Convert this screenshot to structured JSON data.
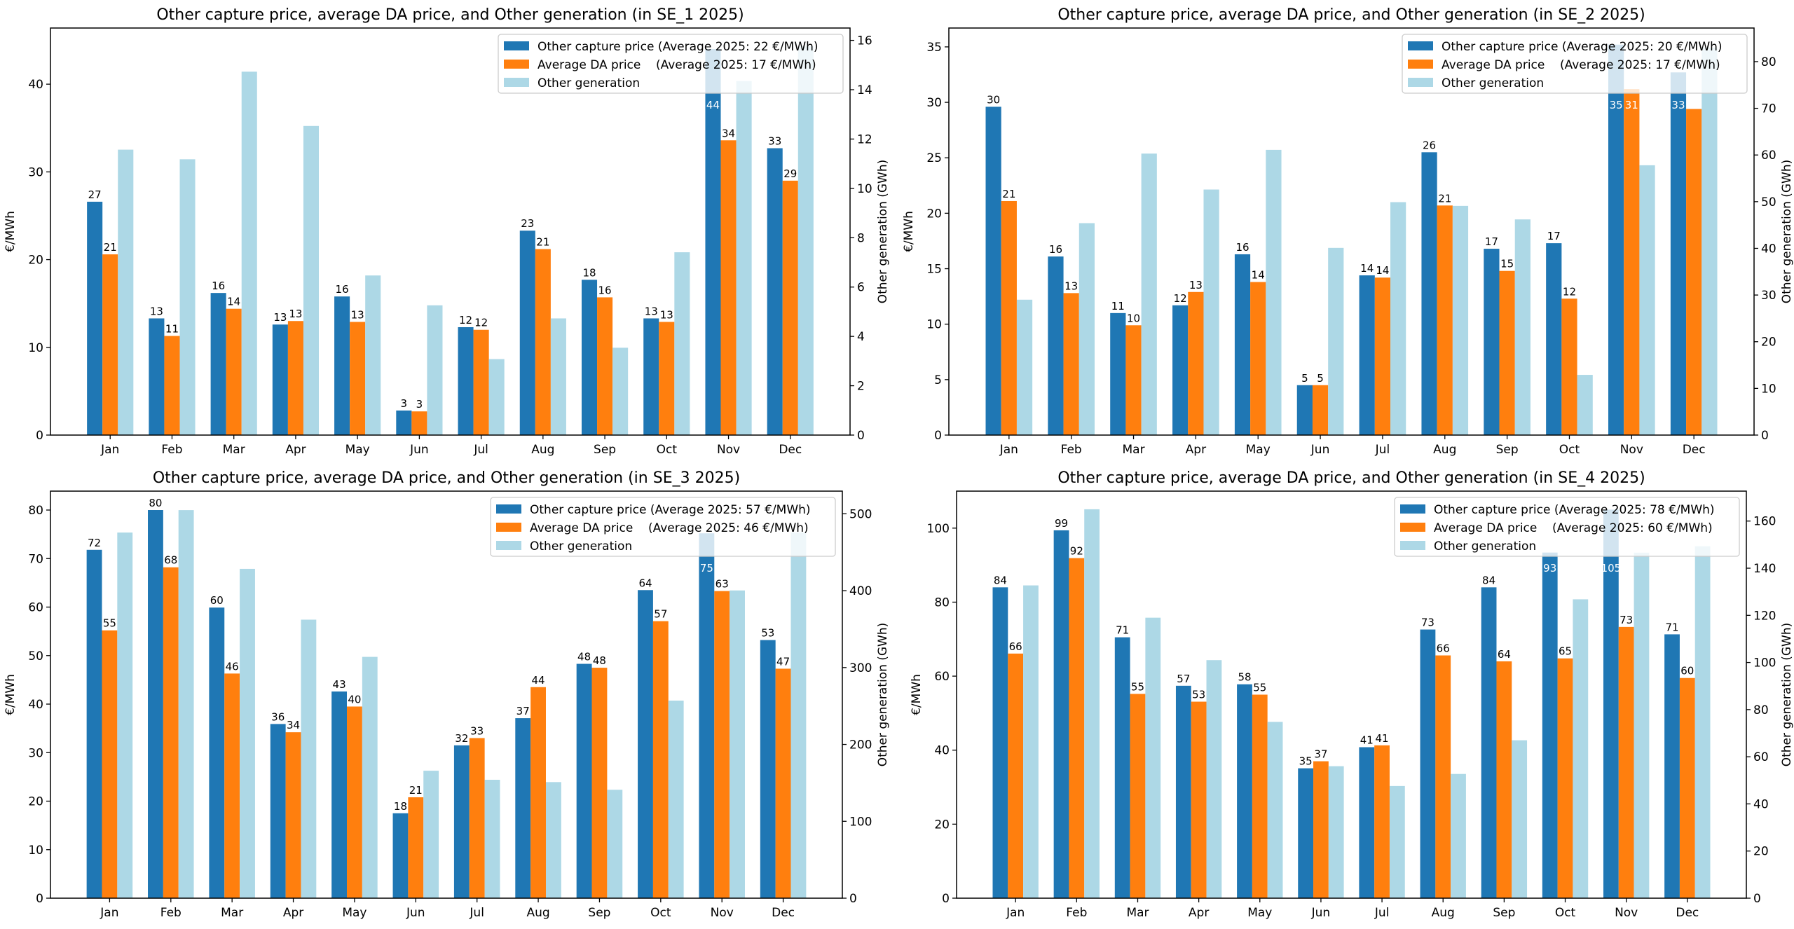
{
  "colors": {
    "capture": "#1f77b4",
    "da": "#ff7f0e",
    "generation": "#add8e6"
  },
  "chart_data": [
    {
      "type": "bar",
      "title": "Other capture price, average DA price, and Other generation (in SE_1 2025)",
      "ylabel": "€/MWh",
      "y2label": "Other generation (GWh)",
      "categories": [
        "Jan",
        "Feb",
        "Mar",
        "Apr",
        "May",
        "Jun",
        "Jul",
        "Aug",
        "Sep",
        "Oct",
        "Nov",
        "Dec"
      ],
      "ylim": [
        0,
        46.4
      ],
      "yticks": [
        0,
        10,
        20,
        30,
        40
      ],
      "y2lim": [
        0,
        16.5
      ],
      "y2ticks": [
        0,
        2,
        4,
        6,
        8,
        10,
        12,
        14,
        16
      ],
      "legend": "top-right",
      "series": [
        {
          "name": "Other capture price (Average 2025: 22 €/MWh)",
          "axis": "left",
          "labels": true,
          "values": [
            26.6,
            13.3,
            16.2,
            12.6,
            15.8,
            2.8,
            12.3,
            23.3,
            17.7,
            13.3,
            44.0,
            32.7
          ]
        },
        {
          "name": "Average DA price    (Average 2025: 17 €/MWh)",
          "axis": "left",
          "labels": true,
          "values": [
            20.6,
            11.3,
            14.4,
            13.0,
            12.9,
            2.7,
            12.0,
            21.2,
            15.7,
            12.9,
            33.6,
            29.0
          ]
        },
        {
          "name": "Other generation",
          "axis": "right",
          "labels": false,
          "values": [
            11.57,
            11.18,
            14.73,
            12.53,
            6.47,
            5.26,
            3.08,
            4.73,
            3.54,
            7.41,
            14.35,
            15.76
          ]
        }
      ]
    },
    {
      "type": "bar",
      "title": "Other capture price, average DA price, and Other generation (in SE_2 2025)",
      "ylabel": "€/MWh",
      "y2label": "Other generation (GWh)",
      "categories": [
        "Jan",
        "Feb",
        "Mar",
        "Apr",
        "May",
        "Jun",
        "Jul",
        "Aug",
        "Sep",
        "Oct",
        "Nov",
        "Dec"
      ],
      "ylim": [
        0,
        36.7
      ],
      "yticks": [
        0,
        5,
        10,
        15,
        20,
        25,
        30,
        35
      ],
      "y2lim": [
        0,
        87.2
      ],
      "y2ticks": [
        0,
        10,
        20,
        30,
        40,
        50,
        60,
        70,
        80
      ],
      "legend": "top-right",
      "series": [
        {
          "name": "Other capture price (Average 2025: 20 €/MWh)",
          "axis": "left",
          "labels": true,
          "values": [
            29.6,
            16.1,
            11.0,
            11.7,
            16.3,
            4.5,
            14.4,
            25.5,
            16.8,
            17.3,
            35.2,
            32.7
          ]
        },
        {
          "name": "Average DA price    (Average 2025: 17 €/MWh)",
          "axis": "left",
          "labels": true,
          "values": [
            21.1,
            12.8,
            9.9,
            12.9,
            13.8,
            4.5,
            14.2,
            20.7,
            14.8,
            12.3,
            31.2,
            29.4
          ]
        },
        {
          "name": "Other generation",
          "axis": "right",
          "labels": false,
          "values": [
            29.0,
            45.4,
            60.3,
            52.6,
            61.1,
            40.1,
            49.9,
            49.1,
            46.2,
            12.9,
            57.8,
            83.0
          ]
        }
      ]
    },
    {
      "type": "bar",
      "title": "Other capture price, average DA price, and Other generation (in SE_3 2025)",
      "ylabel": "€/MWh",
      "y2label": "Other generation (GWh)",
      "categories": [
        "Jan",
        "Feb",
        "Mar",
        "Apr",
        "May",
        "Jun",
        "Jul",
        "Aug",
        "Sep",
        "Oct",
        "Nov",
        "Dec"
      ],
      "ylim": [
        0,
        83.9
      ],
      "yticks": [
        0,
        10,
        20,
        30,
        40,
        50,
        60,
        70,
        80
      ],
      "y2lim": [
        0,
        529.5
      ],
      "y2ticks": [
        0,
        100,
        200,
        300,
        400,
        500
      ],
      "legend": "top-right",
      "series": [
        {
          "name": "Other capture price (Average 2025: 57 €/MWh)",
          "axis": "left",
          "labels": true,
          "values": [
            71.8,
            80.0,
            59.9,
            35.9,
            42.6,
            17.5,
            31.5,
            37.1,
            48.3,
            63.5,
            75.2,
            53.2
          ]
        },
        {
          "name": "Average DA price    (Average 2025: 46 €/MWh)",
          "axis": "left",
          "labels": true,
          "values": [
            55.2,
            68.2,
            46.3,
            34.2,
            39.5,
            20.8,
            33.0,
            43.5,
            47.5,
            57.1,
            63.3,
            47.3
          ]
        },
        {
          "name": "Other generation",
          "axis": "right",
          "labels": false,
          "values": [
            475.6,
            504.8,
            428.4,
            362.3,
            313.9,
            165.8,
            154.0,
            151.0,
            141.0,
            257.0,
            400.3,
            475.6
          ]
        }
      ]
    },
    {
      "type": "bar",
      "title": "Other capture price, average DA price, and Other generation (in SE_4 2025)",
      "ylabel": "€/MWh",
      "y2label": "Other generation (GWh)",
      "categories": [
        "Jan",
        "Feb",
        "Mar",
        "Apr",
        "May",
        "Jun",
        "Jul",
        "Aug",
        "Sep",
        "Oct",
        "Nov",
        "Dec"
      ],
      "ylim": [
        0,
        110
      ],
      "yticks": [
        0,
        20,
        40,
        60,
        80,
        100
      ],
      "y2lim": [
        0,
        172.7
      ],
      "y2ticks": [
        0,
        20,
        40,
        60,
        80,
        100,
        120,
        140,
        160
      ],
      "legend": "top-right",
      "series": [
        {
          "name": "Other capture price (Average 2025: 78 €/MWh)",
          "axis": "left",
          "labels": true,
          "values": [
            84.0,
            99.4,
            70.5,
            57.4,
            57.8,
            35.1,
            40.8,
            72.6,
            84.0,
            93.4,
            105.0,
            71.3
          ]
        },
        {
          "name": "Average DA price    (Average 2025: 60 €/MWh)",
          "axis": "left",
          "labels": true,
          "values": [
            66.1,
            91.9,
            55.2,
            53.1,
            55.0,
            37.0,
            41.3,
            65.6,
            64.0,
            64.8,
            73.3,
            59.5
          ]
        },
        {
          "name": "Other generation",
          "axis": "right",
          "labels": false,
          "values": [
            132.7,
            165.0,
            119.0,
            101.0,
            74.8,
            56.0,
            47.6,
            52.7,
            67.0,
            126.8,
            146.6,
            149.3
          ]
        }
      ]
    }
  ]
}
